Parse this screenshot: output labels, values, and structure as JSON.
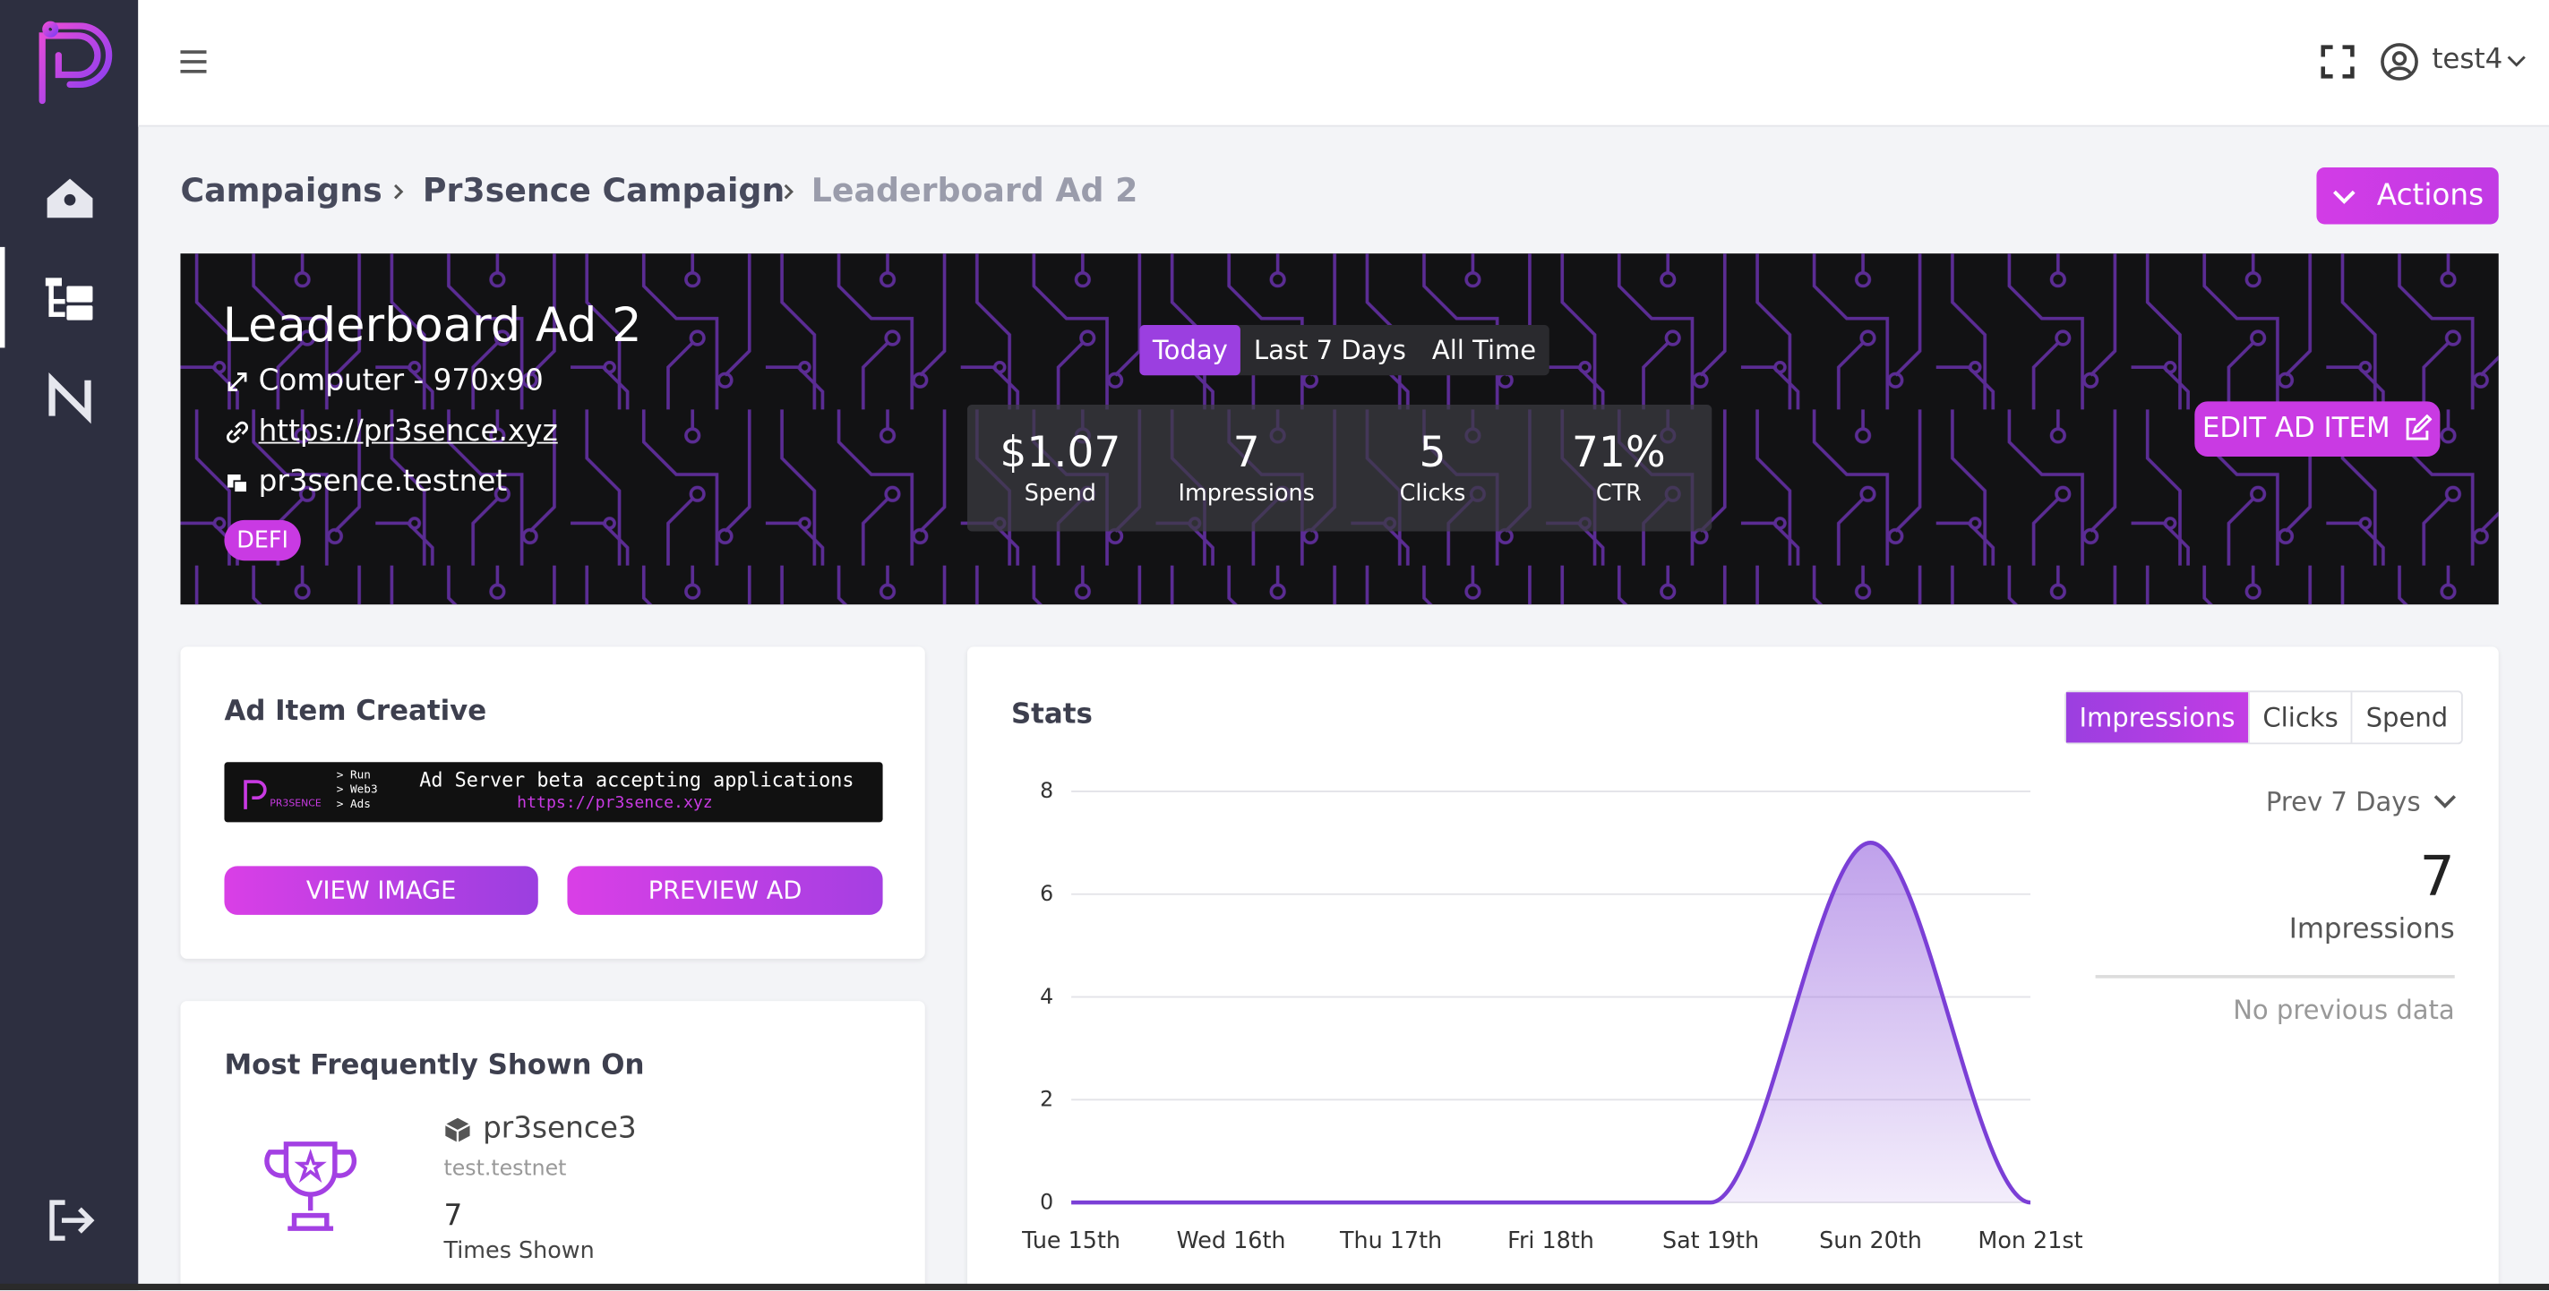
{
  "header": {
    "user": "test4"
  },
  "breadcrumb": [
    "Campaigns",
    "Pr3sence Campaign",
    "Leaderboard Ad 2"
  ],
  "actions_button": "Actions",
  "banner": {
    "title": "Leaderboard Ad 2",
    "size": "Computer - 970x90",
    "url": "https://pr3sence.xyz",
    "account": "pr3sence.testnet",
    "tag": "DEFI",
    "periods": [
      "Today",
      "Last 7 Days",
      "All Time"
    ],
    "stats": [
      {
        "value": "$1.07",
        "label": "Spend"
      },
      {
        "value": "7",
        "label": "Impressions"
      },
      {
        "value": "5",
        "label": "Clicks"
      },
      {
        "value": "71%",
        "label": "CTR"
      }
    ],
    "edit_button": "EDIT AD ITEM"
  },
  "creative": {
    "title": "Ad Item Creative",
    "ad_lines": [
      "> Run",
      "> Web3",
      "> Ads"
    ],
    "ad_headline": "Ad Server beta accepting applications",
    "ad_url": "https://pr3sence.xyz",
    "buttons": [
      "VIEW IMAGE",
      "PREVIEW AD"
    ]
  },
  "most_shown": {
    "title": "Most Frequently Shown On",
    "name": "pr3sence3",
    "account": "test.testnet",
    "count": "7",
    "count_label": "Times Shown"
  },
  "stats_panel": {
    "title": "Stats",
    "tabs": [
      "Impressions",
      "Clicks",
      "Spend"
    ],
    "range": "Prev 7 Days",
    "total": "7",
    "total_label": "Impressions",
    "note": "No previous data"
  },
  "chart_data": {
    "type": "area",
    "categories": [
      "Tue 15th",
      "Wed 16th",
      "Thu 17th",
      "Fri 18th",
      "Sat 19th",
      "Sun 20th",
      "Mon 21st"
    ],
    "values": [
      0,
      0,
      0,
      0,
      0,
      7,
      0
    ],
    "color": "#7b3fd6",
    "ylim": [
      0,
      8
    ],
    "yticks": [
      0,
      2,
      4,
      6,
      8
    ],
    "grid": true
  }
}
